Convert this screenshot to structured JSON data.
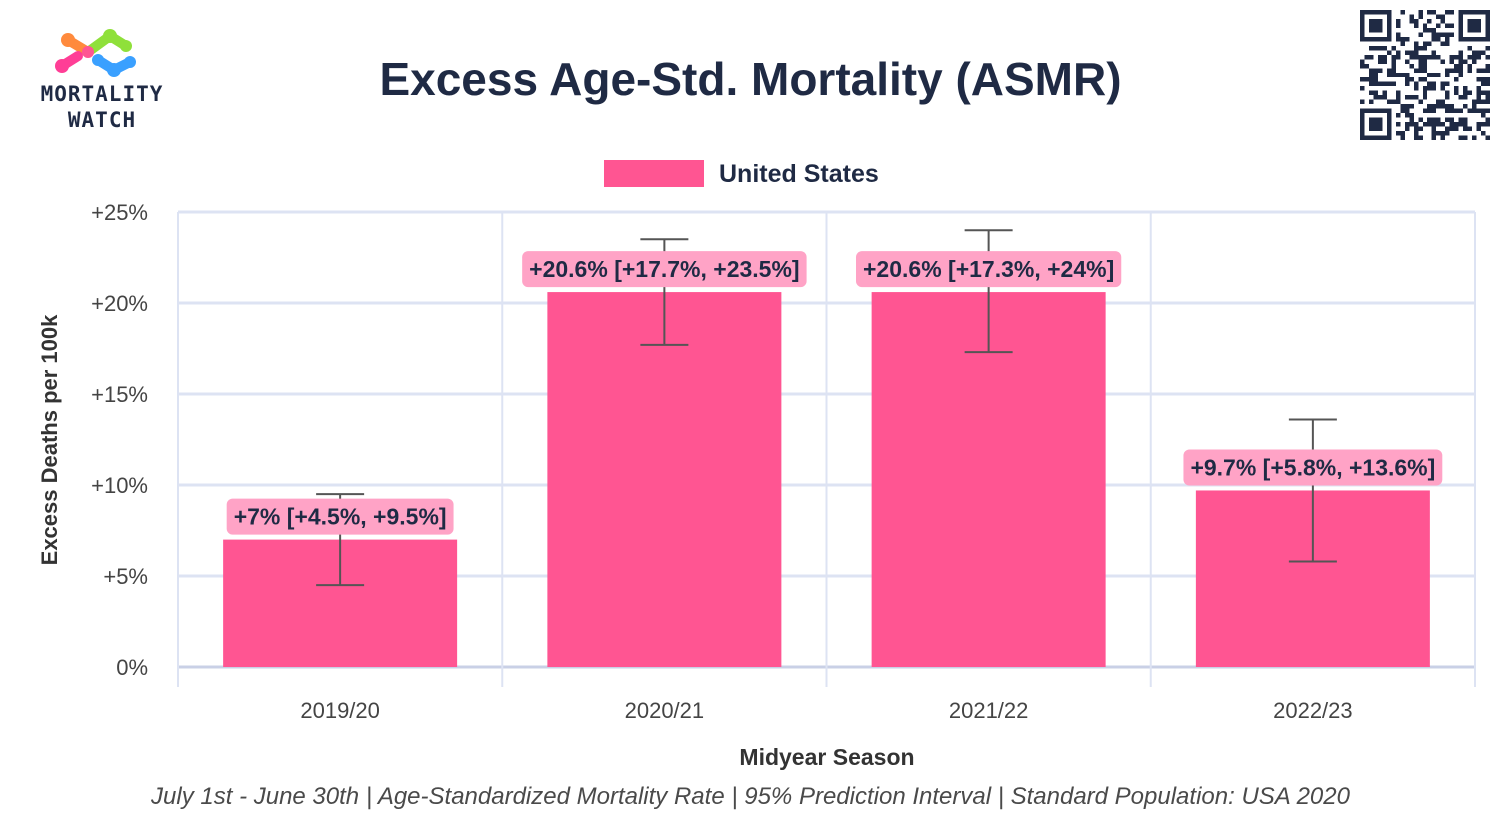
{
  "brand": {
    "line1": "MORTALITY",
    "line2": "WATCH"
  },
  "qr_icon": "qr-code-icon",
  "colors": {
    "bar": "#ff5592",
    "label_bg": "#ffa3c6",
    "grid": "#dde3f3",
    "axis": "#c9d0e6",
    "text_dark": "#1f2a44",
    "error_bar": "#555555"
  },
  "chart_data": {
    "type": "bar",
    "title": "Excess Age-Std. Mortality (ASMR)",
    "xlabel": "Midyear Season",
    "ylabel": "Excess Deaths per 100k",
    "categories": [
      "2019/20",
      "2020/21",
      "2021/22",
      "2022/23"
    ],
    "series": [
      {
        "name": "United States",
        "values": [
          7,
          20.6,
          20.6,
          9.7
        ],
        "lower": [
          4.5,
          17.7,
          17.3,
          5.8
        ],
        "upper": [
          9.5,
          23.5,
          24,
          13.6
        ],
        "data_labels": [
          "+7% [+4.5%, +9.5%]",
          "+20.6% [+17.7%, +23.5%]",
          "+20.6% [+17.3%, +24%]",
          "+9.7% [+5.8%, +13.6%]"
        ]
      }
    ],
    "ylim": [
      0,
      25
    ],
    "yticks": [
      0,
      5,
      10,
      15,
      20,
      25
    ],
    "ytick_labels": [
      "0%",
      "+5%",
      "+10%",
      "+15%",
      "+20%",
      "+25%"
    ],
    "grid": true,
    "legend_position": "top-center",
    "footnote": "July 1st - June 30th | Age-Standardized Mortality Rate | 95% Prediction Interval | Standard Population: USA 2020"
  }
}
